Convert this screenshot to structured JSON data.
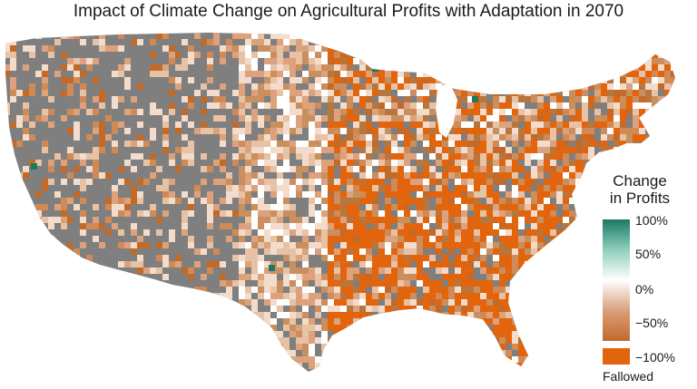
{
  "title": "Impact of Climate Change on Agricultural Profits with Adaptation in 2070",
  "map": {
    "region": "Contiguous United States (county level)",
    "base_color": "#7f7f7f"
  },
  "legend": {
    "title_line1": "Change",
    "title_line2": "in Profits",
    "ticks": [
      "100%",
      "50%",
      "0%",
      "−50%",
      "−100%"
    ],
    "fallowed_label": "Fallowed",
    "colors": {
      "positive": "#1b7a63",
      "positive_mid": "#8fcfbd",
      "zero": "#ffffff",
      "negative_mid": "#d8a07a",
      "negative": "#c26a2a",
      "fallowed": "#e2640c"
    }
  }
}
